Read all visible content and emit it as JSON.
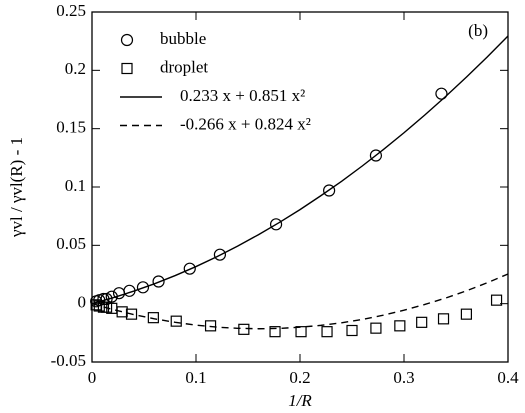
{
  "chart_data": {
    "type": "scatter",
    "xlabel": "1/R",
    "ylabel": "γvl / γvl(R) - 1",
    "annotation": "(b)",
    "xlim": [
      0,
      0.4
    ],
    "ylim": [
      -0.05,
      0.25
    ],
    "xticks": [
      0,
      0.1,
      0.2,
      0.3,
      0.4
    ],
    "yticks": [
      -0.05,
      0,
      0.05,
      0.1,
      0.15,
      0.2,
      0.25
    ],
    "legend": "upper left",
    "series": [
      {
        "name": "bubble",
        "style": "circle",
        "color": "#000000",
        "x": [
          0.004,
          0.007,
          0.011,
          0.014,
          0.019,
          0.026,
          0.036,
          0.049,
          0.064,
          0.094,
          0.123,
          0.177,
          0.228,
          0.273,
          0.336
        ],
        "values": [
          0.002,
          0.003,
          0.004,
          0.004,
          0.006,
          0.009,
          0.011,
          0.014,
          0.019,
          0.03,
          0.042,
          0.068,
          0.097,
          0.127,
          0.18
        ]
      },
      {
        "name": "droplet",
        "style": "square",
        "color": "#000000",
        "x": [
          0.004,
          0.007,
          0.011,
          0.014,
          0.019,
          0.029,
          0.038,
          0.059,
          0.081,
          0.114,
          0.146,
          0.176,
          0.201,
          0.226,
          0.25,
          0.273,
          0.296,
          0.317,
          0.338,
          0.36,
          0.389
        ],
        "values": [
          -0.001,
          -0.002,
          -0.003,
          -0.003,
          -0.004,
          -0.007,
          -0.009,
          -0.012,
          -0.015,
          -0.019,
          -0.022,
          -0.024,
          -0.024,
          -0.024,
          -0.023,
          -0.021,
          -0.019,
          -0.016,
          -0.013,
          -0.009,
          0.003
        ]
      },
      {
        "name": "0.233 x + 0.851 x²",
        "style": "solid",
        "color": "#000000",
        "x": [
          0,
          0.02,
          0.04,
          0.06,
          0.08,
          0.1,
          0.12,
          0.14,
          0.16,
          0.18,
          0.2,
          0.22,
          0.24,
          0.26,
          0.28,
          0.3,
          0.32,
          0.34,
          0.36,
          0.38,
          0.4
        ],
        "values": [
          0,
          0.005,
          0.0107,
          0.017,
          0.0241,
          0.0318,
          0.0402,
          0.0493,
          0.0591,
          0.0695,
          0.0806,
          0.0925,
          0.1049,
          0.1181,
          0.132,
          0.1465,
          0.1617,
          0.1776,
          0.1942,
          0.2114,
          0.2294
        ]
      },
      {
        "name": "-0.266 x + 0.824 x²",
        "style": "dashed",
        "color": "#000000",
        "x": [
          0,
          0.02,
          0.04,
          0.06,
          0.08,
          0.1,
          0.12,
          0.14,
          0.16,
          0.18,
          0.2,
          0.22,
          0.24,
          0.26,
          0.28,
          0.3,
          0.32,
          0.34,
          0.36,
          0.38,
          0.4
        ],
        "values": [
          0,
          -0.005,
          -0.0093,
          -0.013,
          -0.016,
          -0.0184,
          -0.0201,
          -0.0211,
          -0.0215,
          -0.0212,
          -0.0202,
          -0.0186,
          -0.0164,
          -0.0135,
          -0.0099,
          -0.0056,
          -0.0007,
          0.0048,
          0.011,
          0.0179,
          0.0254
        ]
      }
    ]
  }
}
